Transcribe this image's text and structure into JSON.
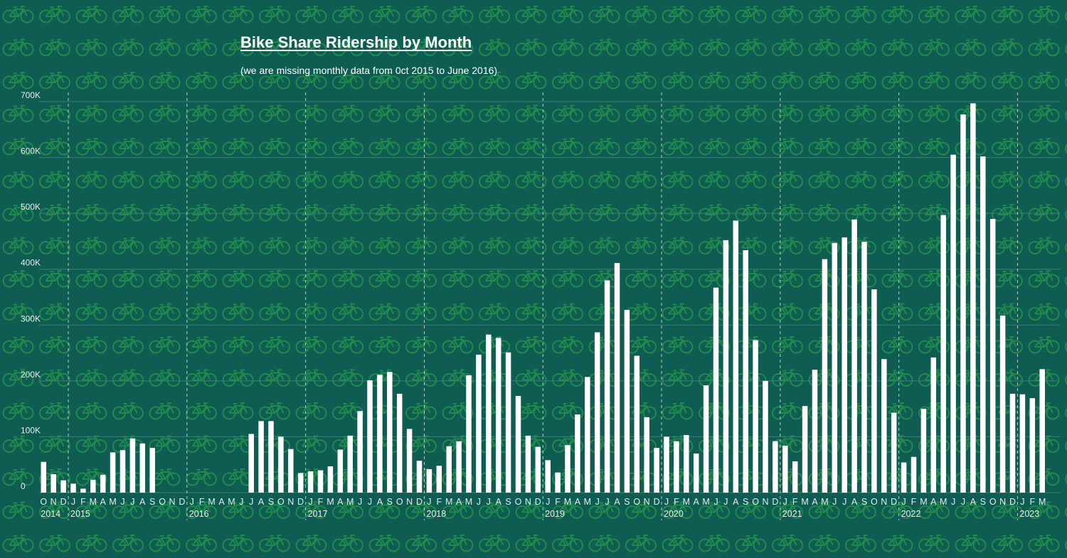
{
  "colors": {
    "background": "#0f5c52",
    "bar": "#ffffff",
    "pattern": "#1f8a4b",
    "gridline": "#3d7f74",
    "year_divider": "#b8cfca",
    "text": "#ffffff"
  },
  "background_pattern_icon": "bicycle-icon",
  "chart_data": {
    "type": "bar",
    "title": "Bike Share Ridership by Month",
    "subtitle": "(we are missing monthly data from 0ct 2015 to June 2016)",
    "ylim": [
      0,
      700000
    ],
    "yticks": [
      0,
      100000,
      200000,
      300000,
      400000,
      500000,
      600000,
      700000
    ],
    "ytick_labels": [
      "0",
      "100K",
      "200K",
      "300K",
      "400K",
      "500K",
      "600K",
      "700K"
    ],
    "grid": true,
    "categories": [
      "O",
      "N",
      "D",
      "J",
      "F",
      "M",
      "A",
      "M",
      "J",
      "J",
      "A",
      "S",
      "O",
      "N",
      "D",
      "J",
      "F",
      "M",
      "A",
      "M",
      "J",
      "J",
      "A",
      "S",
      "O",
      "N",
      "D",
      "J",
      "F",
      "M",
      "A",
      "M",
      "J",
      "J",
      "A",
      "S",
      "O",
      "N",
      "D",
      "J",
      "F",
      "M",
      "A",
      "M",
      "J",
      "J",
      "A",
      "S",
      "O",
      "N",
      "D",
      "J",
      "F",
      "M",
      "A",
      "M",
      "J",
      "J",
      "A",
      "S",
      "O",
      "N",
      "D",
      "J",
      "F",
      "M",
      "A",
      "M",
      "J",
      "J",
      "A",
      "S",
      "O",
      "N",
      "D",
      "J",
      "F",
      "M",
      "A",
      "M",
      "J",
      "J",
      "A",
      "S",
      "O",
      "N",
      "D",
      "J",
      "F",
      "M",
      "A",
      "M",
      "J",
      "J",
      "A",
      "S",
      "O",
      "N",
      "D",
      "J",
      "F",
      "M"
    ],
    "year_labels": [
      {
        "label": "2014",
        "start_index": 0
      },
      {
        "label": "2015",
        "start_index": 3
      },
      {
        "label": "2016",
        "start_index": 15
      },
      {
        "label": "2017",
        "start_index": 27
      },
      {
        "label": "2018",
        "start_index": 39
      },
      {
        "label": "2019",
        "start_index": 51
      },
      {
        "label": "2020",
        "start_index": 63
      },
      {
        "label": "2021",
        "start_index": 75
      },
      {
        "label": "2022",
        "start_index": 87
      },
      {
        "label": "2023",
        "start_index": 99
      }
    ],
    "values": [
      55000,
      33000,
      22000,
      16000,
      7000,
      23000,
      32000,
      72000,
      76000,
      97000,
      88000,
      80000,
      null,
      null,
      null,
      null,
      null,
      null,
      null,
      null,
      null,
      105000,
      128000,
      128000,
      100000,
      78000,
      35000,
      38000,
      40000,
      47000,
      77000,
      102000,
      146000,
      201000,
      211000,
      216000,
      177000,
      114000,
      57000,
      42000,
      48000,
      83000,
      92000,
      210000,
      247000,
      283000,
      277000,
      251000,
      173000,
      102000,
      82000,
      58000,
      36000,
      85000,
      140000,
      207000,
      287000,
      380000,
      411000,
      327000,
      245000,
      135000,
      80000,
      100000,
      92000,
      103000,
      70000,
      192000,
      367000,
      452000,
      487000,
      434000,
      273000,
      200000,
      92000,
      84000,
      56000,
      155000,
      220000,
      418000,
      447000,
      457000,
      489000,
      449000,
      364000,
      239000,
      143000,
      54000,
      64000,
      150000,
      242000,
      497000,
      605000,
      677000,
      697000,
      602000,
      490000,
      317000,
      177000,
      176000,
      169000,
      221000
    ]
  }
}
